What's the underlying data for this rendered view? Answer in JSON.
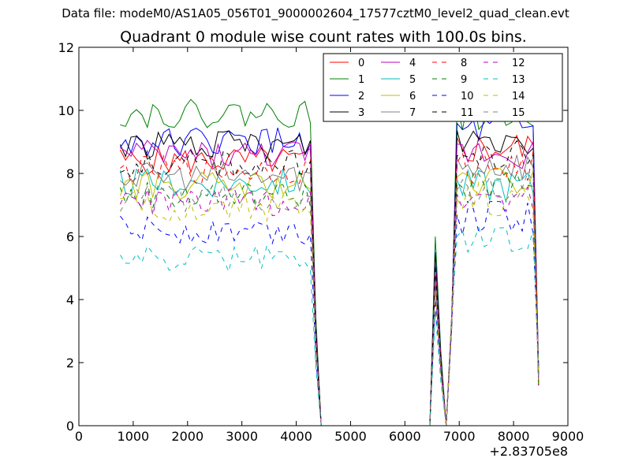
{
  "suptitle": "Data file: modeM0/AS1A05_056T01_9000002604_17577cztM0_level2_quad_clean.evt",
  "chart_data": {
    "type": "line",
    "title": "Quadrant 0 module wise count rates with 100.0s bins.",
    "xlabel": "",
    "ylabel": "",
    "x_offset_label": "+2.83705e8",
    "xlim": [
      0,
      9000
    ],
    "ylim": [
      0,
      12
    ],
    "xticks": [
      "0",
      "1000",
      "2000",
      "3000",
      "4000",
      "5000",
      "6000",
      "7000",
      "8000",
      "9000"
    ],
    "yticks": [
      "0",
      "2",
      "4",
      "6",
      "8",
      "10",
      "12"
    ],
    "grid": false,
    "legend_placement": "top-right",
    "series": [
      {
        "name": "0",
        "color": "#ff0000",
        "style": "solid",
        "base1": 8.4,
        "base2": 8.8,
        "peak": 5.2
      },
      {
        "name": "1",
        "color": "#008000",
        "style": "solid",
        "base1": 9.9,
        "base2": 9.9,
        "peak": 6.0
      },
      {
        "name": "2",
        "color": "#0000ff",
        "style": "solid",
        "base1": 9.0,
        "base2": 9.3,
        "peak": 5.5
      },
      {
        "name": "3",
        "color": "#000000",
        "style": "solid",
        "base1": 8.9,
        "base2": 9.1,
        "peak": 5.4
      },
      {
        "name": "4",
        "color": "#bf00bf",
        "style": "solid",
        "base1": 8.6,
        "base2": 8.7,
        "peak": 5.2
      },
      {
        "name": "5",
        "color": "#00bfbf",
        "style": "solid",
        "base1": 7.7,
        "base2": 7.6,
        "peak": 4.7
      },
      {
        "name": "6",
        "color": "#bfbf00",
        "style": "solid",
        "base1": 7.6,
        "base2": 7.7,
        "peak": 4.6
      },
      {
        "name": "7",
        "color": "#808080",
        "style": "solid",
        "base1": 7.9,
        "base2": 8.3,
        "peak": 4.9
      },
      {
        "name": "8",
        "color": "#ff0000",
        "style": "dashed",
        "base1": 8.1,
        "base2": 8.2,
        "peak": 5.0
      },
      {
        "name": "9",
        "color": "#008000",
        "style": "dashed",
        "base1": 7.3,
        "base2": 7.6,
        "peak": 4.6
      },
      {
        "name": "10",
        "color": "#0000ff",
        "style": "dashed",
        "base1": 6.2,
        "base2": 6.6,
        "peak": 4.0
      },
      {
        "name": "11",
        "color": "#000000",
        "style": "dashed",
        "base1": 8.3,
        "base2": 8.5,
        "peak": 5.1
      },
      {
        "name": "12",
        "color": "#bf00bf",
        "style": "dashed",
        "base1": 7.1,
        "base2": 7.3,
        "peak": 4.4
      },
      {
        "name": "13",
        "color": "#00bfbf",
        "style": "dashed",
        "base1": 5.3,
        "base2": 6.0,
        "peak": 3.6
      },
      {
        "name": "14",
        "color": "#bfbf00",
        "style": "dashed",
        "base1": 6.9,
        "base2": 7.2,
        "peak": 4.3
      },
      {
        "name": "15",
        "color": "#808080",
        "style": "dashed",
        "base1": 7.2,
        "base2": 7.5,
        "peak": 4.5
      }
    ]
  }
}
